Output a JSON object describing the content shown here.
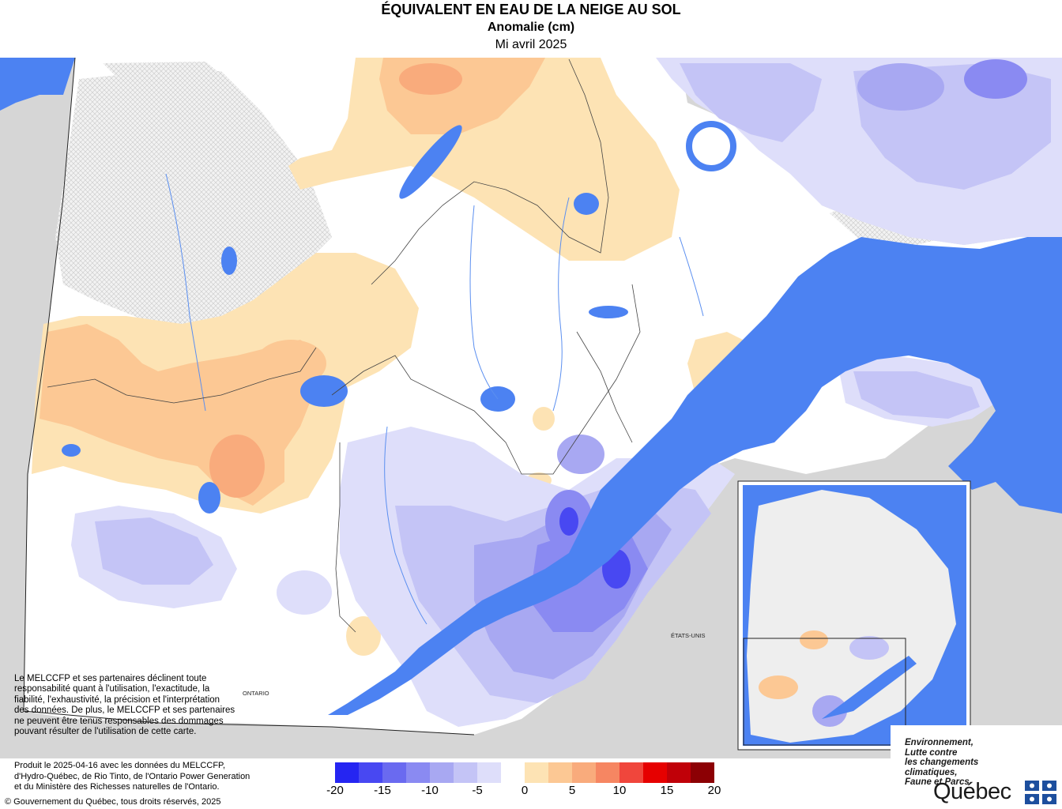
{
  "header": {
    "title": "ÉQUIVALENT EN EAU DE LA NEIGE AU SOL",
    "subtitle": "Anomalie (cm)",
    "period": "Mi avril 2025"
  },
  "map": {
    "labels": {
      "ontario": "ONTARIO",
      "usa": "ÉTATS-UNIS"
    },
    "colors": {
      "water": "#4c82f2",
      "land_outside": "#d6d6d6",
      "inset_land": "#eeeeee"
    }
  },
  "disclaimer": "Le MELCCFP et ses partenaires déclinent toute responsabilité quant à l'utilisation, l'exactitude, la fiabilité, l'exhaustivité, la précision et l'interprétation des données. De plus, le MELCCFP et ses partenaires ne peuvent être tenus responsables des dommages pouvant résulter de l'utilisation de cette carte.",
  "footer": {
    "produced_1": "Produit le 2025-04-16 avec les données du MELCCFP,",
    "produced_2": "d'Hydro-Québec, de Rio Tinto, de l'Ontario Power Generation",
    "produced_3": "et du Ministère des Richesses naturelles de l'Ontario.",
    "copyright": "© Gouvernement du Québec, tous droits réservés, 2025"
  },
  "legend": {
    "colors": [
      "#2525f2",
      "#4848f2",
      "#6a6af0",
      "#8a8af2",
      "#a8a8f2",
      "#c4c4f6",
      "#dedefa",
      "#ffffff",
      "#fde3b4",
      "#fcc894",
      "#f9ab7c",
      "#f68662",
      "#f0463c",
      "#e60000",
      "#c00008",
      "#8c0004"
    ],
    "tick_labels": [
      "-20",
      "-15",
      "-10",
      "-5",
      "0",
      "5",
      "10",
      "15",
      "20"
    ]
  },
  "logo": {
    "line1": "Environnement,",
    "line2": "Lutte contre",
    "line3": "les changements",
    "line4": "climatiques,",
    "line5": "Faune et Parcs",
    "wordmark": "Québec"
  }
}
